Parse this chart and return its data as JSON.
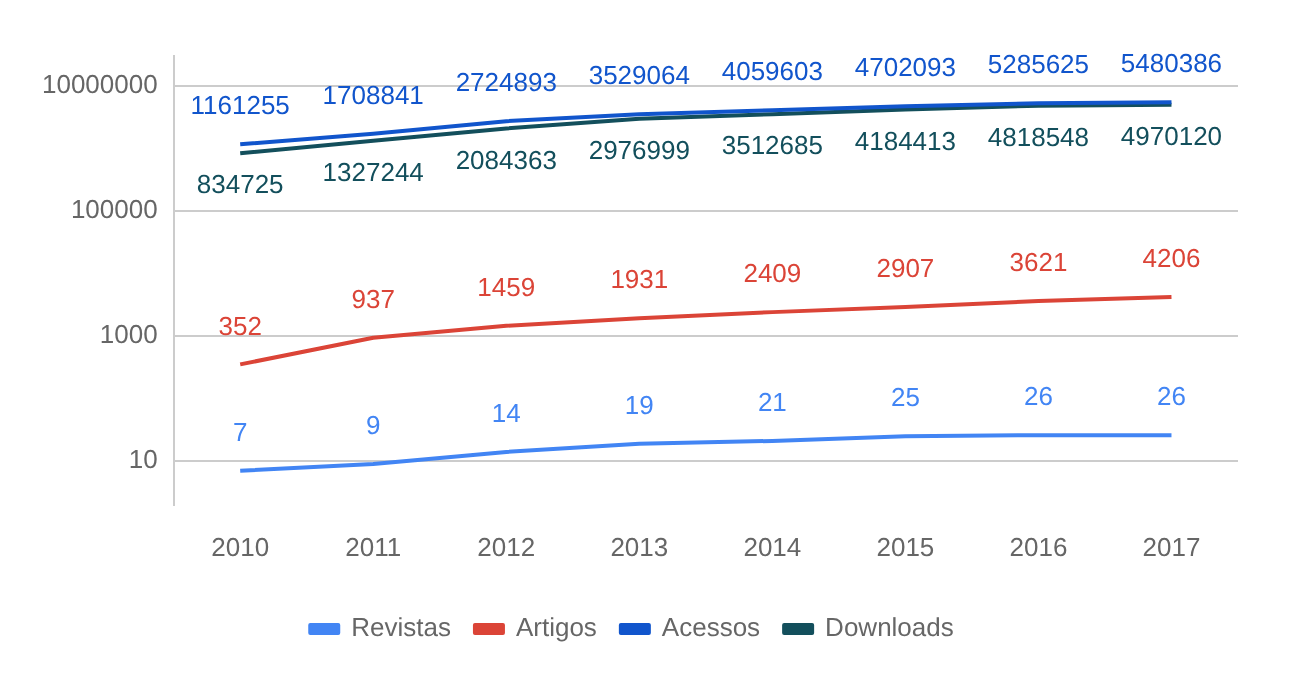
{
  "chart_data": {
    "type": "line",
    "categories": [
      "2010",
      "2011",
      "2012",
      "2013",
      "2014",
      "2015",
      "2016",
      "2017"
    ],
    "series": [
      {
        "name": "Revistas",
        "color": "#4285f4",
        "values": [
          7,
          9,
          14,
          19,
          21,
          25,
          26,
          26
        ]
      },
      {
        "name": "Artigos",
        "color": "#db4437",
        "values": [
          352,
          937,
          1459,
          1931,
          2409,
          2907,
          3621,
          4206
        ]
      },
      {
        "name": "Acessos",
        "color": "#1155cc",
        "values": [
          1161255,
          1708841,
          2724893,
          3529064,
          4059603,
          4702093,
          5285625,
          5480386
        ]
      },
      {
        "name": "Downloads",
        "color": "#134f5c",
        "values": [
          834725,
          1327244,
          2084363,
          2976999,
          3512685,
          4184413,
          4818548,
          4970120
        ]
      }
    ],
    "log": "y",
    "ylim": [
      2,
      30000000
    ],
    "yticks": [
      10,
      1000,
      100000,
      10000000
    ],
    "grid": "y",
    "legend": "bottom",
    "marker": "none",
    "line_style": "solid",
    "data_labels": true
  }
}
